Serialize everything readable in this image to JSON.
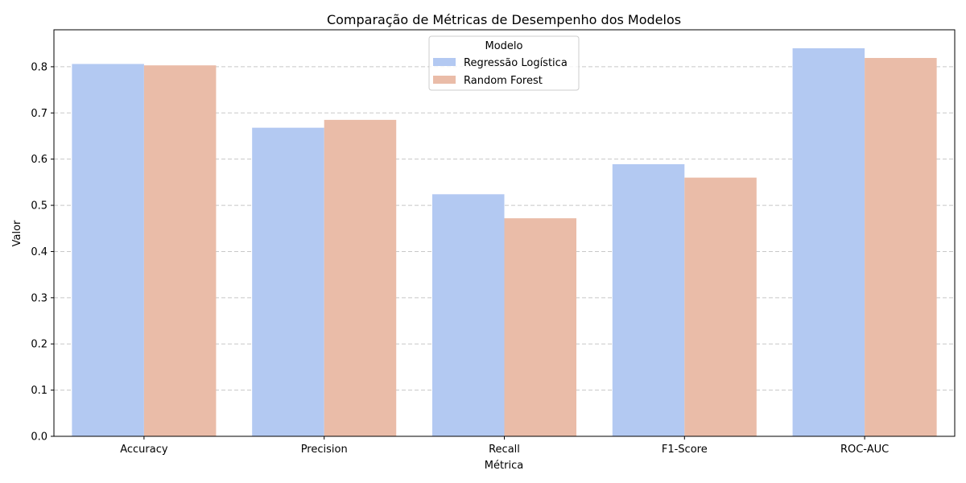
{
  "chart_data": {
    "type": "bar",
    "title": "Comparação de Métricas de Desempenho dos Modelos",
    "xlabel": "Métrica",
    "ylabel": "Valor",
    "categories": [
      "Accuracy",
      "Precision",
      "Recall",
      "F1-Score",
      "ROC-AUC"
    ],
    "series": [
      {
        "name": "Regressão Logística",
        "color": "#b3c9f2",
        "values": [
          0.806,
          0.668,
          0.524,
          0.589,
          0.84
        ]
      },
      {
        "name": "Random Forest",
        "color": "#eabca8",
        "values": [
          0.803,
          0.685,
          0.472,
          0.56,
          0.819
        ]
      }
    ],
    "ylim": [
      0,
      0.88
    ],
    "yticks": [
      0.0,
      0.1,
      0.2,
      0.3,
      0.4,
      0.5,
      0.6,
      0.7,
      0.8
    ],
    "ytick_labels": [
      "0.0",
      "0.1",
      "0.2",
      "0.3",
      "0.4",
      "0.5",
      "0.6",
      "0.7",
      "0.8"
    ],
    "grid": "y-dashed",
    "legend": {
      "title": "Modelo",
      "placement": "top-center"
    }
  }
}
